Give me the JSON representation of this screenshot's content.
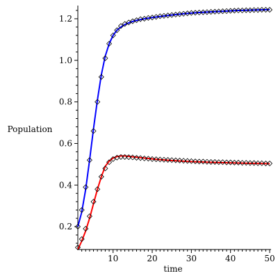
{
  "chart_data": {
    "type": "line",
    "title": "",
    "xlabel": "time",
    "ylabel": "Population",
    "xlim": [
      1,
      50
    ],
    "ylim": [
      0.09,
      1.25
    ],
    "xticks": [
      10,
      20,
      30,
      40,
      50
    ],
    "yticks": [
      0.2,
      0.4,
      0.6,
      0.8,
      1.0,
      1.2
    ],
    "ytick_labels": [
      "0.2",
      "0.4",
      "0.6",
      "0.8",
      "1.0",
      "1.2"
    ],
    "grid": false,
    "legend": "none",
    "series": [
      {
        "color": "#0000ff",
        "style": "line",
        "x": [
          1,
          2,
          3,
          4,
          5,
          6,
          7,
          8,
          9,
          10,
          11,
          12,
          13,
          14,
          15,
          16,
          17,
          18,
          19,
          20,
          22,
          24,
          26,
          28,
          30,
          32,
          34,
          36,
          38,
          40,
          42,
          44,
          46,
          48,
          50
        ],
        "y": [
          0.2,
          0.27,
          0.38,
          0.52,
          0.67,
          0.81,
          0.93,
          1.02,
          1.08,
          1.12,
          1.145,
          1.16,
          1.172,
          1.18,
          1.187,
          1.192,
          1.196,
          1.2,
          1.203,
          1.206,
          1.211,
          1.216,
          1.22,
          1.224,
          1.227,
          1.23,
          1.232,
          1.234,
          1.236,
          1.238,
          1.24,
          1.241,
          1.242,
          1.243,
          1.244
        ]
      },
      {
        "color": "#ff0000",
        "style": "line",
        "x": [
          1,
          2,
          3,
          4,
          5,
          6,
          7,
          8,
          9,
          10,
          11,
          12,
          13,
          14,
          15,
          17,
          19,
          21,
          23,
          25,
          27,
          30,
          33,
          36,
          40,
          44,
          48,
          50
        ],
        "y": [
          0.09,
          0.13,
          0.18,
          0.24,
          0.31,
          0.38,
          0.44,
          0.49,
          0.515,
          0.53,
          0.537,
          0.54,
          0.54,
          0.538,
          0.536,
          0.532,
          0.528,
          0.524,
          0.521,
          0.518,
          0.516,
          0.513,
          0.511,
          0.509,
          0.507,
          0.505,
          0.504,
          0.503
        ]
      },
      {
        "color": "#000000",
        "style": "marker-diamond",
        "x": [
          1,
          2,
          3,
          4,
          5,
          6,
          7,
          8,
          9,
          10,
          11,
          12,
          13,
          14,
          15,
          16,
          17,
          18,
          19,
          20,
          21,
          22,
          23,
          24,
          25,
          26,
          27,
          28,
          29,
          30,
          31,
          32,
          33,
          34,
          35,
          36,
          37,
          38,
          39,
          40,
          41,
          42,
          43,
          44,
          45,
          46,
          47,
          48,
          49,
          50
        ],
        "y": [
          0.2,
          0.28,
          0.39,
          0.52,
          0.66,
          0.8,
          0.92,
          1.01,
          1.08,
          1.12,
          1.145,
          1.165,
          1.175,
          1.182,
          1.188,
          1.193,
          1.198,
          1.2,
          1.204,
          1.206,
          1.209,
          1.212,
          1.214,
          1.216,
          1.218,
          1.22,
          1.222,
          1.224,
          1.226,
          1.228,
          1.229,
          1.23,
          1.231,
          1.232,
          1.233,
          1.234,
          1.235,
          1.236,
          1.237,
          1.238,
          1.239,
          1.24,
          1.24,
          1.241,
          1.241,
          1.242,
          1.242,
          1.243,
          1.243,
          1.243
        ]
      },
      {
        "color": "#000000",
        "style": "marker-diamond",
        "x": [
          1,
          2,
          3,
          4,
          5,
          6,
          7,
          8,
          9,
          10,
          11,
          12,
          13,
          14,
          15,
          16,
          17,
          18,
          19,
          20,
          21,
          22,
          23,
          24,
          25,
          26,
          27,
          28,
          29,
          30,
          31,
          32,
          33,
          34,
          35,
          36,
          37,
          38,
          39,
          40,
          41,
          42,
          43,
          44,
          45,
          46,
          47,
          48,
          49,
          50
        ],
        "y": [
          0.1,
          0.14,
          0.19,
          0.25,
          0.32,
          0.38,
          0.44,
          0.48,
          0.51,
          0.525,
          0.532,
          0.535,
          0.535,
          0.534,
          0.533,
          0.531,
          0.53,
          0.528,
          0.527,
          0.525,
          0.524,
          0.523,
          0.522,
          0.521,
          0.52,
          0.519,
          0.518,
          0.517,
          0.516,
          0.515,
          0.514,
          0.513,
          0.513,
          0.512,
          0.511,
          0.511,
          0.51,
          0.51,
          0.509,
          0.509,
          0.508,
          0.508,
          0.507,
          0.507,
          0.506,
          0.506,
          0.505,
          0.505,
          0.504,
          0.504
        ]
      }
    ]
  }
}
